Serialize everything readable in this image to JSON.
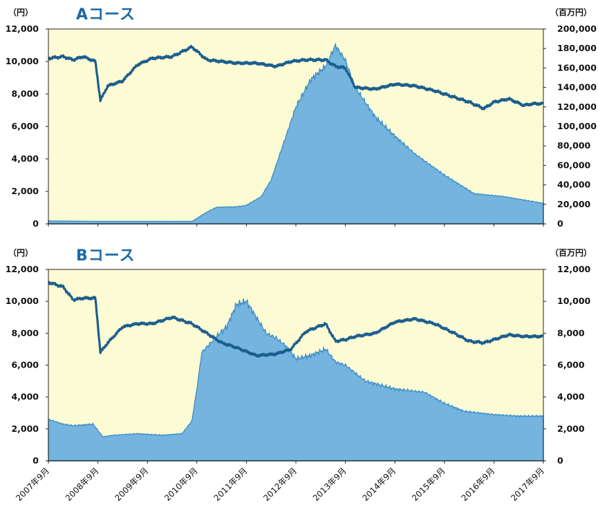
{
  "colors": {
    "plot_bg": "#fdfbd4",
    "area_fill": "#74b4df",
    "area_edge": "#3d8fc8",
    "price_line": "#1b5e8e",
    "title": "#1a6aa7"
  },
  "x_categories": [
    "2007年9月",
    "2008年9月",
    "2009年9月",
    "2010年9月",
    "2011年9月",
    "2012年9月",
    "2013年9月",
    "2014年9月",
    "2015年9月",
    "2016年9月",
    "2017年9月"
  ],
  "chart_data": [
    {
      "type": "line",
      "title": "Aコース",
      "left_unit": "（円）",
      "right_unit": "（百万円）",
      "left_ticks": [
        "0",
        "2,000",
        "4,000",
        "6,000",
        "8,000",
        "10,000",
        "12,000"
      ],
      "right_ticks": [
        "0",
        "20,000",
        "40,000",
        "60,000",
        "80,000",
        "100,000",
        "120,000",
        "140,000",
        "160,000",
        "180,000",
        "200,000"
      ],
      "ylim_left": [
        0,
        12000
      ],
      "ylim_right": [
        0,
        200000
      ],
      "series": [
        {
          "role": "price",
          "axis": "left",
          "x": [
            0,
            0.3,
            0.5,
            0.7,
            0.95,
            1.05,
            1.2,
            1.5,
            1.8,
            2.1,
            2.5,
            2.9,
            3.2,
            3.5,
            3.8,
            4.2,
            4.6,
            4.9,
            5.2,
            5.6,
            5.8,
            6.0,
            6.2,
            6.6,
            7.0,
            7.4,
            7.8,
            8.2,
            8.5,
            8.8,
            9.0,
            9.3,
            9.6,
            9.8,
            10.0
          ],
          "values": [
            10200,
            10300,
            10100,
            10300,
            10000,
            7600,
            8500,
            8800,
            9800,
            10200,
            10300,
            10900,
            10100,
            10000,
            9900,
            9900,
            9700,
            10000,
            10100,
            10100,
            9700,
            9600,
            8400,
            8300,
            8600,
            8500,
            8200,
            7800,
            7500,
            7100,
            7500,
            7700,
            7300,
            7400,
            7400
          ]
        },
        {
          "role": "net_assets",
          "axis": "right",
          "x": [
            0,
            1,
            2,
            2.5,
            2.9,
            3.2,
            3.4,
            3.8,
            4.0,
            4.3,
            4.5,
            4.7,
            5.0,
            5.3,
            5.6,
            5.8,
            6.0,
            6.2,
            6.6,
            7.0,
            7.4,
            8.0,
            8.6,
            9.2,
            10.0
          ],
          "values": [
            3000,
            2500,
            2500,
            2500,
            2500,
            12000,
            17000,
            17500,
            19000,
            28000,
            45000,
            75000,
            120000,
            148000,
            162000,
            183000,
            168000,
            140000,
            110000,
            90000,
            72000,
            50000,
            31000,
            28000,
            21000
          ]
        }
      ]
    },
    {
      "type": "line",
      "title": "Bコース",
      "left_unit": "（円）",
      "right_unit": "（百万円）",
      "left_ticks": [
        "0",
        "2,000",
        "4,000",
        "6,000",
        "8,000",
        "10,000",
        "12,000"
      ],
      "right_ticks": [
        "0",
        "2,000",
        "4,000",
        "6,000",
        "8,000",
        "10,000",
        "12,000"
      ],
      "ylim_left": [
        0,
        12000
      ],
      "ylim_right": [
        0,
        12000
      ],
      "series": [
        {
          "role": "price",
          "axis": "left",
          "x": [
            0,
            0.3,
            0.5,
            0.7,
            0.95,
            1.05,
            1.2,
            1.5,
            1.8,
            2.1,
            2.5,
            2.9,
            3.2,
            3.5,
            3.8,
            4.2,
            4.6,
            4.9,
            5.2,
            5.6,
            5.8,
            6.0,
            6.2,
            6.6,
            7.0,
            7.4,
            7.8,
            8.2,
            8.5,
            8.8,
            9.0,
            9.3,
            9.6,
            9.8,
            10.0
          ],
          "values": [
            11200,
            10900,
            10100,
            10200,
            10200,
            6800,
            7400,
            8400,
            8600,
            8600,
            9000,
            8600,
            8000,
            7400,
            7100,
            6600,
            6700,
            7000,
            8100,
            8600,
            7500,
            7600,
            7800,
            8000,
            8700,
            8900,
            8600,
            8000,
            7500,
            7400,
            7600,
            7900,
            7800,
            7800,
            7800
          ]
        },
        {
          "role": "net_assets",
          "axis": "right",
          "x": [
            0,
            0.3,
            0.5,
            0.9,
            1.1,
            1.3,
            1.8,
            2.3,
            2.7,
            2.9,
            3.0,
            3.1,
            3.4,
            3.6,
            3.8,
            4.0,
            4.2,
            4.4,
            4.6,
            4.8,
            5.0,
            5.3,
            5.6,
            5.8,
            6.0,
            6.4,
            7.0,
            7.6,
            8.0,
            8.4,
            9.0,
            9.5,
            10.0
          ],
          "values": [
            2600,
            2300,
            2200,
            2300,
            1500,
            1600,
            1700,
            1600,
            1700,
            2500,
            4500,
            6800,
            7800,
            8400,
            9800,
            10000,
            9000,
            8000,
            7700,
            7200,
            6400,
            6600,
            7000,
            6200,
            6000,
            5000,
            4500,
            4300,
            3600,
            3100,
            2900,
            2800,
            2800
          ]
        }
      ]
    }
  ]
}
